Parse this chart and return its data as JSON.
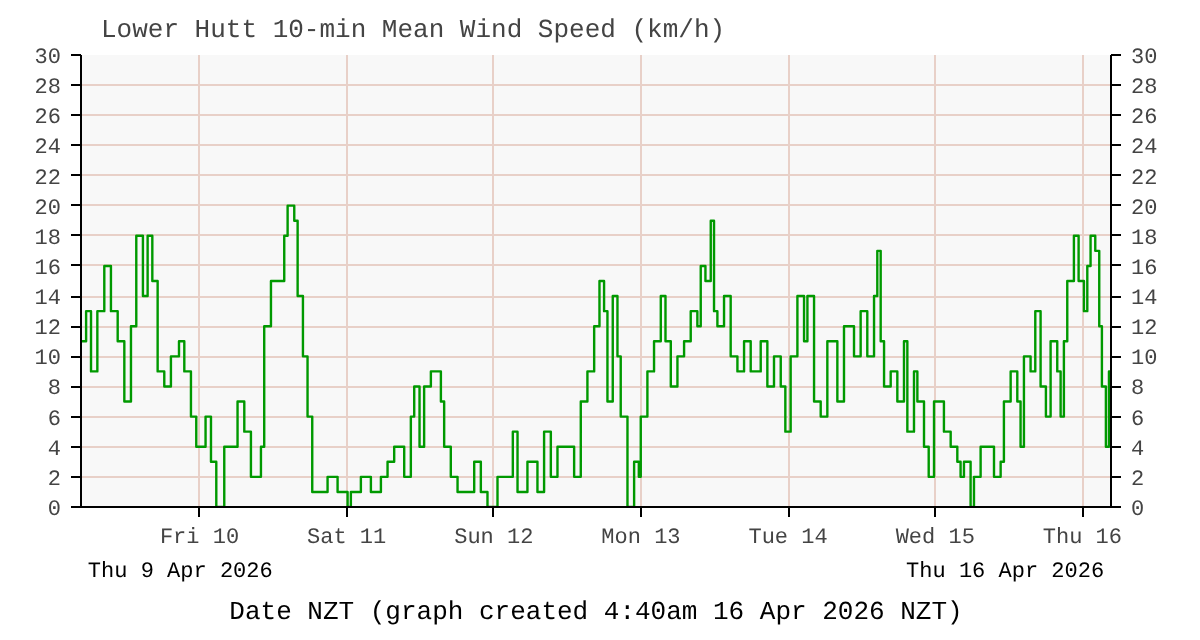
{
  "chart_data": {
    "type": "step",
    "title": "Lower Hutt 10-min Mean Wind Speed (km/h)",
    "xlabel": "Date NZT (graph created 4:40am 16 Apr 2026 NZT)",
    "annotations": [
      "Thu 9 Apr 2026",
      "Thu 16 Apr 2026"
    ],
    "x": [
      "2026-04-09T04:40",
      "2026-04-09T05:30",
      "2026-04-09T06:18",
      "2026-04-09T07:20",
      "2026-04-09T08:28",
      "2026-04-09T09:33",
      "2026-04-09T10:39",
      "2026-04-09T11:44",
      "2026-04-09T12:49",
      "2026-04-09T13:41",
      "2026-04-09T14:46",
      "2026-04-09T15:32",
      "2026-04-09T16:18",
      "2026-04-09T17:10",
      "2026-04-09T18:15",
      "2026-04-09T19:20",
      "2026-04-09T20:39",
      "2026-04-09T21:31",
      "2026-04-09T22:36",
      "2026-04-09T23:28",
      "2026-04-10T00:59",
      "2026-04-10T01:52",
      "2026-04-10T02:44",
      "2026-04-10T04:02",
      "2026-04-10T06:12",
      "2026-04-10T07:18",
      "2026-04-10T08:23",
      "2026-04-10T09:28",
      "2026-04-10T10:01",
      "2026-04-10T10:33",
      "2026-04-10T11:39",
      "2026-04-10T12:44",
      "2026-04-10T13:49",
      "2026-04-10T14:22",
      "2026-04-10T15:27",
      "2026-04-10T16:00",
      "2026-04-10T16:52",
      "2026-04-10T17:37",
      "2026-04-10T18:23",
      "2026-04-10T19:15",
      "2026-04-10T20:53",
      "2026-04-10T22:31",
      "2026-04-11T00:09",
      "2026-04-11T00:41",
      "2026-04-11T02:19",
      "2026-04-11T03:57",
      "2026-04-11T05:35",
      "2026-04-11T06:40",
      "2026-04-11T07:45",
      "2026-04-11T09:23",
      "2026-04-11T10:28",
      "2026-04-11T11:01",
      "2026-04-11T11:53",
      "2026-04-11T12:38",
      "2026-04-11T13:44",
      "2026-04-11T14:49",
      "2026-04-11T15:22",
      "2026-04-11T15:54",
      "2026-04-11T16:59",
      "2026-04-11T18:05",
      "2026-04-11T19:42",
      "2026-04-11T20:48",
      "2026-04-11T21:53",
      "2026-04-11T22:58",
      "2026-04-12T00:36",
      "2026-04-12T03:06",
      "2026-04-12T03:52",
      "2026-04-12T05:29",
      "2026-04-12T07:07",
      "2026-04-12T08:12",
      "2026-04-12T09:18",
      "2026-04-12T10:23",
      "2026-04-12T12:01",
      "2026-04-12T13:06",
      "2026-04-12T14:11",
      "2026-04-12T15:16",
      "2026-04-12T16:22",
      "2026-04-12T17:14",
      "2026-04-12T17:59",
      "2026-04-12T18:32",
      "2026-04-12T19:24",
      "2026-04-12T20:10",
      "2026-04-12T20:42",
      "2026-04-12T21:48",
      "2026-04-12T22:53",
      "2026-04-12T23:39",
      "2026-04-12T23:58",
      "2026-04-13T01:03",
      "2026-04-13T02:08",
      "2026-04-13T03:14",
      "2026-04-13T04:00",
      "2026-04-13T04:52",
      "2026-04-13T05:57",
      "2026-04-13T07:02",
      "2026-04-13T08:07",
      "2026-04-13T09:12",
      "2026-04-13T09:45",
      "2026-04-13T10:31",
      "2026-04-13T11:23",
      "2026-04-13T11:55",
      "2026-04-13T12:28",
      "2026-04-13T13:33",
      "2026-04-13T14:38",
      "2026-04-13T15:44",
      "2026-04-13T16:49",
      "2026-04-13T17:54",
      "2026-04-13T19:32",
      "2026-04-13T20:37",
      "2026-04-13T21:42",
      "2026-04-13T22:48",
      "2026-04-13T23:33",
      "2026-04-14T00:25",
      "2026-04-14T01:31",
      "2026-04-14T02:36",
      "2026-04-14T03:09",
      "2026-04-14T04:14",
      "2026-04-14T05:19",
      "2026-04-14T06:24",
      "2026-04-14T08:02",
      "2026-04-14T09:07",
      "2026-04-14T10:45",
      "2026-04-14T11:50",
      "2026-04-14T12:55",
      "2026-04-14T14:01",
      "2026-04-14T14:33",
      "2026-04-14T15:06",
      "2026-04-14T15:39",
      "2026-04-14T16:44",
      "2026-04-14T17:49",
      "2026-04-14T18:54",
      "2026-04-14T19:27",
      "2026-04-14T20:32",
      "2026-04-14T21:05",
      "2026-04-14T22:10",
      "2026-04-14T22:56",
      "2026-04-14T23:48",
      "2026-04-15T00:53",
      "2026-04-15T01:25",
      "2026-04-15T02:31",
      "2026-04-15T03:36",
      "2026-04-15T04:08",
      "2026-04-15T04:41",
      "2026-04-15T05:46",
      "2026-04-15T06:19",
      "2026-04-15T07:24",
      "2026-04-15T09:35",
      "2026-04-15T10:40",
      "2026-04-15T11:12",
      "2026-04-15T12:18",
      "2026-04-15T13:23",
      "2026-04-15T13:55",
      "2026-04-15T14:28",
      "2026-04-15T15:33",
      "2026-04-15T16:19",
      "2026-04-15T17:11",
      "2026-04-15T18:03",
      "2026-04-15T18:49",
      "2026-04-15T19:54",
      "2026-04-15T20:27",
      "2026-04-15T20:59",
      "2026-04-15T21:32",
      "2026-04-15T22:37",
      "2026-04-15T23:23",
      "2026-04-16T00:15",
      "2026-04-16T00:48",
      "2026-04-16T01:20",
      "2026-04-16T02:06",
      "2026-04-16T02:45",
      "2026-04-16T03:11",
      "2026-04-16T03:50",
      "2026-04-16T04:20",
      "2026-04-16T04:40"
    ],
    "series": [
      {
        "color": "#009900",
        "values": [
          11,
          13,
          9,
          13,
          16,
          13,
          11,
          7,
          12,
          18,
          14,
          18,
          15,
          9,
          8,
          10,
          11,
          9,
          6,
          4,
          6,
          3,
          0,
          4,
          7,
          5,
          2,
          2,
          4,
          12,
          15,
          15,
          18,
          20,
          19,
          14,
          10,
          6,
          1,
          1,
          2,
          1,
          0,
          1,
          2,
          1,
          2,
          3,
          4,
          2,
          6,
          8,
          4,
          8,
          9,
          9,
          7,
          4,
          2,
          1,
          1,
          3,
          1,
          0,
          2,
          5,
          1,
          3,
          1,
          5,
          2,
          4,
          4,
          2,
          7,
          9,
          12,
          15,
          13,
          7,
          14,
          10,
          6,
          0,
          3,
          2,
          6,
          9,
          11,
          14,
          11,
          8,
          10,
          11,
          13,
          12,
          16,
          15,
          19,
          13,
          12,
          14,
          10,
          9,
          11,
          9,
          11,
          8,
          10,
          8,
          5,
          10,
          14,
          11,
          14,
          7,
          6,
          11,
          7,
          12,
          10,
          13,
          10,
          14,
          17,
          11,
          8,
          9,
          7,
          11,
          5,
          9,
          7,
          4,
          2,
          7,
          7,
          5,
          4,
          3,
          2,
          3,
          0,
          2,
          4,
          2,
          3,
          7,
          9,
          7,
          4,
          10,
          9,
          13,
          8,
          6,
          11,
          9,
          6,
          11,
          15,
          18,
          15,
          13,
          16,
          18,
          17,
          12,
          8,
          4,
          9,
          4
        ]
      }
    ],
    "xlim": [
      "2026-04-09T04:40",
      "2026-04-16T04:40"
    ],
    "xticks": [
      {
        "value": "2026-04-10",
        "label": "Fri 10"
      },
      {
        "value": "2026-04-11",
        "label": "Sat 11"
      },
      {
        "value": "2026-04-12",
        "label": "Sun 12"
      },
      {
        "value": "2026-04-13",
        "label": "Mon 13"
      },
      {
        "value": "2026-04-14",
        "label": "Tue 14"
      },
      {
        "value": "2026-04-15",
        "label": "Wed 15"
      },
      {
        "value": "2026-04-16",
        "label": "Thu 16"
      }
    ],
    "ylim": [
      0,
      30
    ],
    "yticks": [
      0,
      2,
      4,
      6,
      8,
      10,
      12,
      14,
      16,
      18,
      20,
      22,
      24,
      26,
      28,
      30
    ],
    "y2lim": [
      0,
      30
    ],
    "y2ticks": [
      0,
      2,
      4,
      6,
      8,
      10,
      12,
      14,
      16,
      18,
      20,
      22,
      24,
      26,
      28,
      30
    ],
    "grid": true,
    "line_style": "solid"
  }
}
